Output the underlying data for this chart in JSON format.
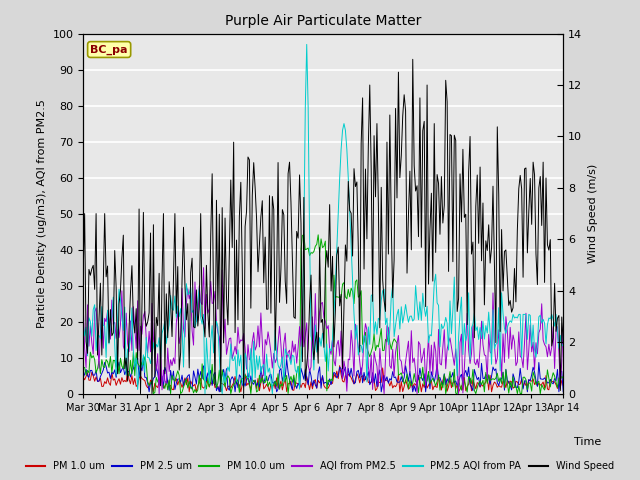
{
  "title": "Purple Air Particulate Matter",
  "xlabel": "Time",
  "ylabel_left": "Particle Density (ug/m3), AQI from PM2.5",
  "ylabel_right": "Wind Speed (m/s)",
  "annotation": "BC_pa",
  "ylim_left": [
    0,
    100
  ],
  "ylim_right": [
    0,
    14
  ],
  "yticks_left": [
    0,
    10,
    20,
    30,
    40,
    50,
    60,
    70,
    80,
    90,
    100
  ],
  "yticks_right": [
    0,
    2,
    4,
    6,
    8,
    10,
    12,
    14
  ],
  "x_tick_labels": [
    "Mar 30",
    "Mar 31",
    "Apr 1",
    "Apr 2",
    "Apr 3",
    "Apr 4",
    "Apr 5",
    "Apr 6",
    "Apr 7",
    "Apr 8",
    "Apr 9",
    "Apr 10",
    "Apr 11",
    "Apr 12",
    "Apr 13",
    "Apr 14"
  ],
  "colors": {
    "pm1": "#cc0000",
    "pm25": "#0000cc",
    "pm10": "#00aa00",
    "aqi_pm25": "#9900cc",
    "aqi_pa": "#00cccc",
    "wind": "#000000"
  },
  "legend_labels": [
    "PM 1.0 um",
    "PM 2.5 um",
    "PM 10.0 um",
    "AQI from PM2.5",
    "PM2.5 AQI from PA",
    "Wind Speed"
  ],
  "bg_color": "#d8d8d8",
  "plot_bg_color": "#e8e8e8",
  "grid_color": "#ffffff",
  "n_points": 336
}
